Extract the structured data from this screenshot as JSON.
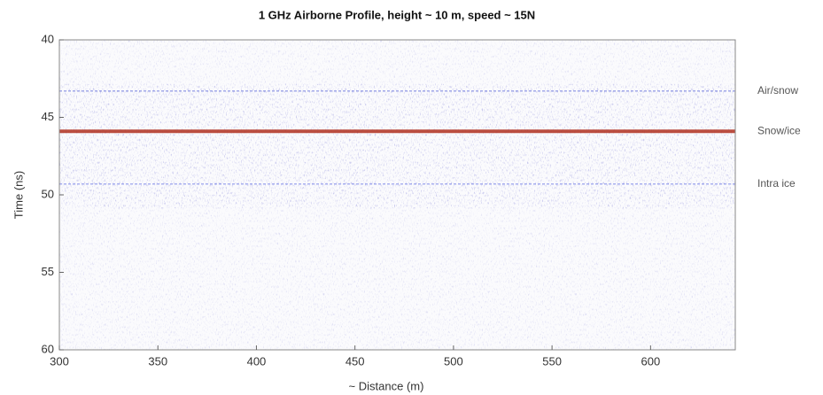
{
  "chart_data": {
    "type": "image",
    "title": "1 GHz Airborne Profile, height ~ 10 m, speed ~ 15N",
    "x_label": "~ Distance (m)",
    "y_label": "Time (ns)",
    "xlim": [
      300,
      643
    ],
    "xticks": [
      300,
      350,
      400,
      450,
      500,
      550,
      600
    ],
    "ylim": [
      60,
      40
    ],
    "yticks": [
      40,
      45,
      50,
      55,
      60
    ],
    "annotations": [
      {
        "text": "Air/snow",
        "y": 43.3
      },
      {
        "text": "Snow/ice",
        "y": 45.9
      },
      {
        "text": "Intra ice",
        "y": 49.3
      }
    ]
  }
}
